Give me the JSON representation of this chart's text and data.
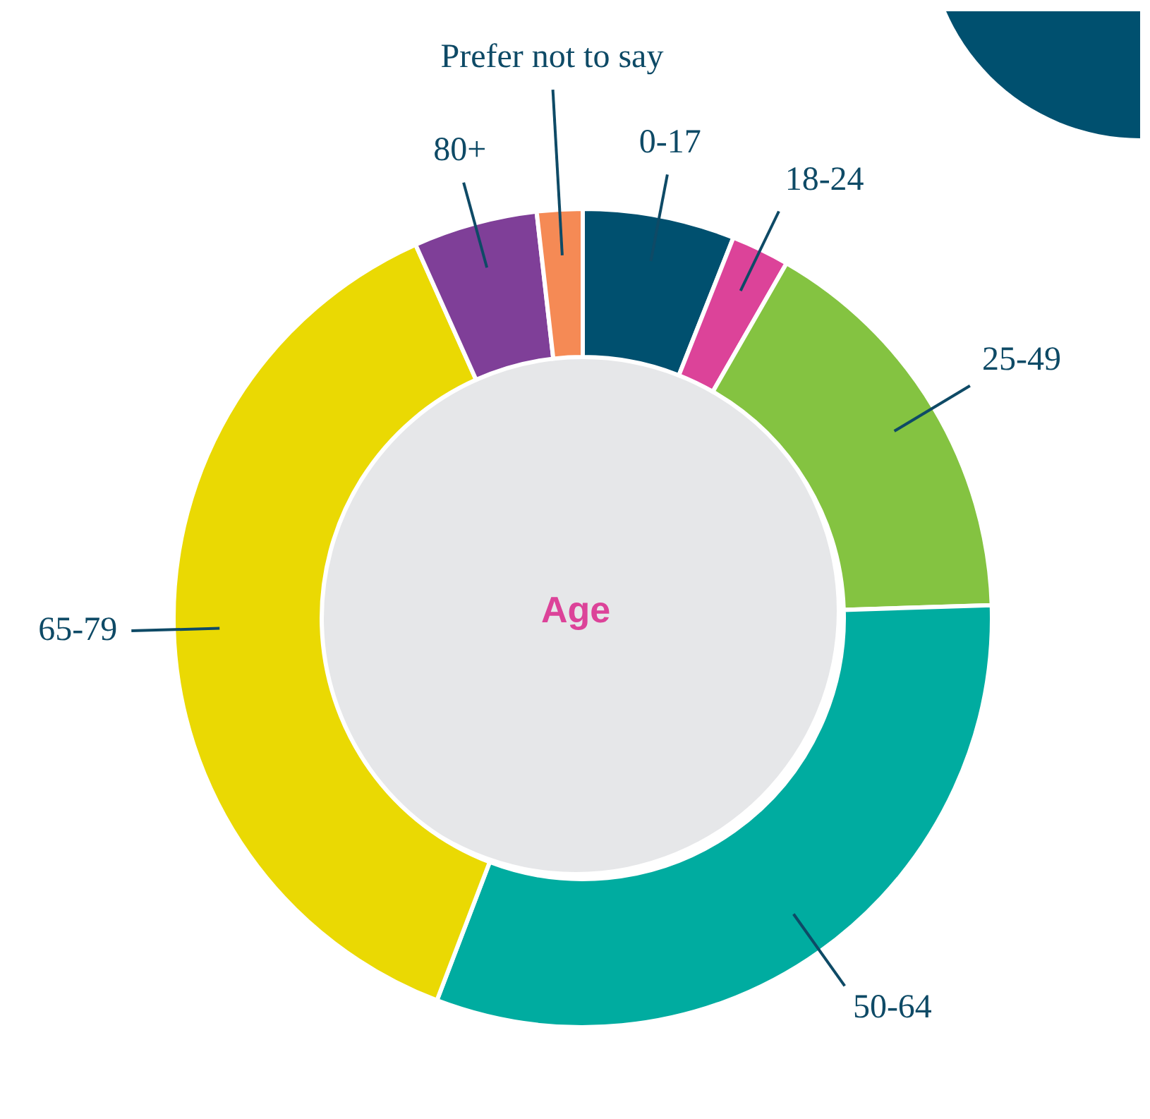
{
  "chart_data": {
    "type": "donut",
    "title": "Age",
    "categories": [
      "0-17",
      "18-24",
      "25-49",
      "50-64",
      "65-79",
      "80+",
      "Prefer not to say"
    ],
    "values": [
      6,
      2.3,
      16.2,
      31.3,
      37.5,
      4.9,
      1.8
    ],
    "colors": [
      "#00506f",
      "#dc4399",
      "#84c341",
      "#00aca0",
      "#ead903",
      "#7f3f98",
      "#f58a55"
    ]
  }
}
